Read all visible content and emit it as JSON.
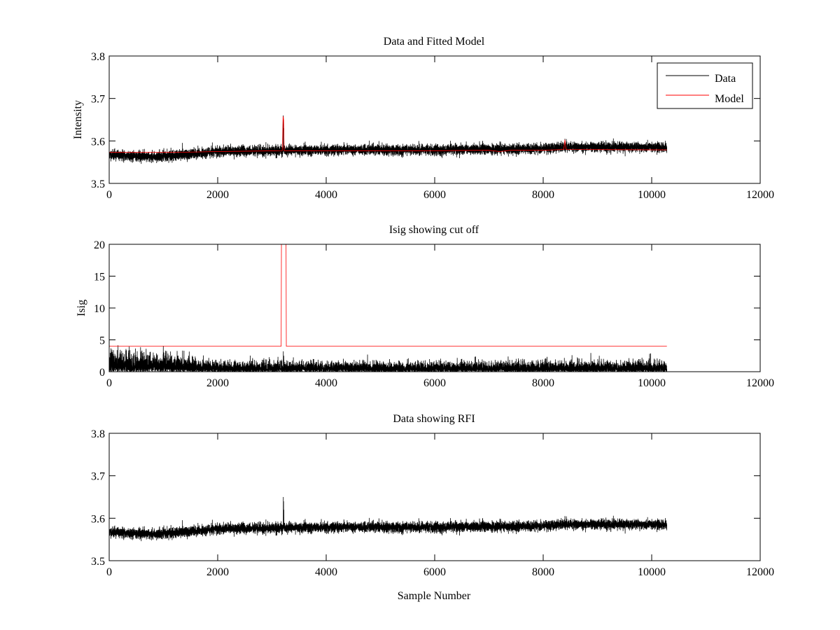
{
  "colors": {
    "data": "#000000",
    "model": "#ff0000",
    "axes": "#000000",
    "background": "#ffffff"
  },
  "chart_data": [
    {
      "id": "panel1",
      "type": "line",
      "title": "Data and Fitted Model",
      "xlabel": "",
      "ylabel": "Intensity",
      "xlim": [
        0,
        12000
      ],
      "ylim": [
        3.5,
        3.8
      ],
      "xticks": [
        0,
        2000,
        4000,
        6000,
        8000,
        10000,
        12000
      ],
      "yticks": [
        3.5,
        3.6,
        3.7,
        3.8
      ],
      "xtick_labels": [
        "0",
        "2000",
        "4000",
        "6000",
        "8000",
        "10000",
        "12000"
      ],
      "ytick_labels": [
        "3.5",
        "3.6",
        "3.7",
        "3.8"
      ],
      "legend": {
        "position": "top-right",
        "entries": [
          "Data",
          "Model"
        ]
      },
      "series": [
        {
          "name": "Data",
          "color": "#000000",
          "kind": "noise",
          "n": 10280,
          "x_end": 10280,
          "noise": 0.006,
          "seed": 11,
          "baseline": [
            [
              0,
              3.567
            ],
            [
              800,
              3.563
            ],
            [
              1200,
              3.566
            ],
            [
              2000,
              3.575
            ],
            [
              3000,
              3.577
            ],
            [
              3200,
              3.577
            ],
            [
              4000,
              3.579
            ],
            [
              6000,
              3.579
            ],
            [
              8000,
              3.582
            ],
            [
              8400,
              3.586
            ],
            [
              10280,
              3.585
            ]
          ],
          "spikes": [
            [
              3210,
              3.66
            ],
            [
              3215,
              3.65
            ],
            [
              3220,
              3.63
            ],
            [
              8400,
              3.605
            ]
          ]
        },
        {
          "name": "Model",
          "color": "#ff0000",
          "kind": "line",
          "points": [
            [
              0,
              3.573
            ],
            [
              1200,
              3.573
            ],
            [
              2000,
              3.575
            ],
            [
              3190,
              3.577
            ],
            [
              3205,
              3.658
            ],
            [
              3215,
              3.65
            ],
            [
              3225,
              3.577
            ],
            [
              4000,
              3.577
            ],
            [
              6000,
              3.577
            ],
            [
              7000,
              3.578
            ],
            [
              7200,
              3.575
            ],
            [
              7400,
              3.578
            ],
            [
              8000,
              3.578
            ],
            [
              8380,
              3.58
            ],
            [
              8400,
              3.603
            ],
            [
              8420,
              3.58
            ],
            [
              10280,
              3.579
            ]
          ]
        }
      ]
    },
    {
      "id": "panel2",
      "type": "line",
      "title": "Isig showing cut off",
      "xlabel": "",
      "ylabel": "Isig",
      "xlim": [
        0,
        12000
      ],
      "ylim": [
        0,
        20
      ],
      "xticks": [
        0,
        2000,
        4000,
        6000,
        8000,
        10000,
        12000
      ],
      "yticks": [
        0,
        5,
        10,
        15,
        20
      ],
      "xtick_labels": [
        "0",
        "2000",
        "4000",
        "6000",
        "8000",
        "10000",
        "12000"
      ],
      "ytick_labels": [
        "0",
        "5",
        "10",
        "15",
        "20"
      ],
      "series": [
        {
          "name": "Isig",
          "color": "#000000",
          "kind": "abs-noise",
          "n": 10280,
          "x_end": 10280,
          "seed": 23,
          "envelope": [
            [
              0,
              1.7
            ],
            [
              1000,
              1.6
            ],
            [
              1500,
              1.2
            ],
            [
              2000,
              0.9
            ],
            [
              4000,
              0.85
            ],
            [
              6000,
              0.85
            ],
            [
              8000,
              0.9
            ],
            [
              10280,
              0.95
            ]
          ],
          "spikes": [
            [
              3210,
              3.2
            ],
            [
              3218,
              2.5
            ]
          ]
        },
        {
          "name": "Cut off",
          "color": "#ff0000",
          "kind": "line",
          "points": [
            [
              0,
              4
            ],
            [
              3170,
              4
            ],
            [
              3175,
              20
            ],
            [
              3180,
              20
            ],
            [
              3205,
              20
            ],
            [
              3210,
              20
            ],
            [
              3260,
              20
            ],
            [
              3265,
              4
            ],
            [
              10280,
              4
            ]
          ]
        }
      ]
    },
    {
      "id": "panel3",
      "type": "line",
      "title": "Data showing RFI",
      "xlabel": "Sample Number",
      "ylabel": "",
      "xlim": [
        0,
        12000
      ],
      "ylim": [
        3.5,
        3.8
      ],
      "xticks": [
        0,
        2000,
        4000,
        6000,
        8000,
        10000,
        12000
      ],
      "yticks": [
        3.5,
        3.6,
        3.7,
        3.8
      ],
      "xtick_labels": [
        "0",
        "2000",
        "4000",
        "6000",
        "8000",
        "10000",
        "12000"
      ],
      "ytick_labels": [
        "3.5",
        "3.6",
        "3.7",
        "3.8"
      ],
      "series": [
        {
          "name": "Data",
          "color": "#000000",
          "kind": "noise",
          "n": 10280,
          "x_end": 10280,
          "noise": 0.006,
          "seed": 11,
          "baseline": [
            [
              0,
              3.567
            ],
            [
              800,
              3.563
            ],
            [
              1200,
              3.566
            ],
            [
              2000,
              3.575
            ],
            [
              3000,
              3.577
            ],
            [
              3200,
              3.577
            ],
            [
              4000,
              3.579
            ],
            [
              6000,
              3.579
            ],
            [
              8000,
              3.582
            ],
            [
              8400,
              3.586
            ],
            [
              10280,
              3.585
            ]
          ],
          "spikes": [
            [
              3210,
              3.65
            ],
            [
              3215,
              3.64
            ],
            [
              3220,
              3.62
            ],
            [
              8400,
              3.605
            ]
          ]
        }
      ]
    }
  ]
}
